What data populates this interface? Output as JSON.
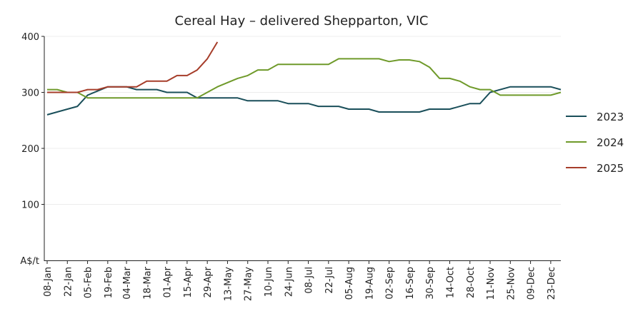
{
  "chart_data": {
    "type": "line",
    "title": "Cereal Hay – delivered Shepparton, VIC",
    "ylabel": "A$/t",
    "ylim": [
      0,
      400
    ],
    "yticks": [
      100,
      200,
      300,
      400
    ],
    "y_unit_label": "A$/t",
    "x_ticks": [
      "08-Jan",
      "22-Jan",
      "05-Feb",
      "19-Feb",
      "04-Mar",
      "18-Mar",
      "01-Apr",
      "15-Apr",
      "29-Apr",
      "13-May",
      "27-May",
      "10-Jun",
      "24-Jun",
      "08-Jul",
      "22-Jul",
      "05-Aug",
      "19-Aug",
      "02-Sep",
      "16-Sep",
      "30-Sep",
      "14-Oct",
      "28-Oct",
      "11-Nov",
      "25-Nov",
      "09-Dec",
      "23-Dec"
    ],
    "legend_position": "right",
    "grid": "horizontal",
    "series": [
      {
        "name": "2023",
        "color": "#1a4f5a",
        "points": [
          [
            "08-Jan",
            260
          ],
          [
            "22-Jan",
            270
          ],
          [
            "29-Jan",
            275
          ],
          [
            "05-Feb",
            295
          ],
          [
            "19-Feb",
            310
          ],
          [
            "04-Mar",
            310
          ],
          [
            "11-Mar",
            305
          ],
          [
            "25-Mar",
            305
          ],
          [
            "01-Apr",
            300
          ],
          [
            "15-Apr",
            300
          ],
          [
            "22-Apr",
            290
          ],
          [
            "29-Apr",
            290
          ],
          [
            "20-May",
            290
          ],
          [
            "27-May",
            285
          ],
          [
            "17-Jun",
            285
          ],
          [
            "24-Jun",
            280
          ],
          [
            "08-Jul",
            280
          ],
          [
            "15-Jul",
            275
          ],
          [
            "29-Jul",
            275
          ],
          [
            "05-Aug",
            270
          ],
          [
            "19-Aug",
            270
          ],
          [
            "26-Aug",
            265
          ],
          [
            "23-Sep",
            265
          ],
          [
            "30-Sep",
            270
          ],
          [
            "14-Oct",
            270
          ],
          [
            "28-Oct",
            280
          ],
          [
            "04-Nov",
            280
          ],
          [
            "11-Nov",
            300
          ],
          [
            "25-Nov",
            310
          ],
          [
            "16-Dec",
            310
          ],
          [
            "23-Dec",
            310
          ],
          [
            "30-Dec",
            305
          ]
        ]
      },
      {
        "name": "2024",
        "color": "#6f9a2a",
        "points": [
          [
            "08-Jan",
            305
          ],
          [
            "15-Jan",
            305
          ],
          [
            "22-Jan",
            300
          ],
          [
            "29-Jan",
            300
          ],
          [
            "05-Feb",
            290
          ],
          [
            "19-Feb",
            290
          ],
          [
            "15-Apr",
            290
          ],
          [
            "22-Apr",
            290
          ],
          [
            "06-May",
            310
          ],
          [
            "20-May",
            325
          ],
          [
            "27-May",
            330
          ],
          [
            "03-Jun",
            340
          ],
          [
            "10-Jun",
            340
          ],
          [
            "17-Jun",
            350
          ],
          [
            "08-Jul",
            350
          ],
          [
            "22-Jul",
            350
          ],
          [
            "29-Jul",
            360
          ],
          [
            "26-Aug",
            360
          ],
          [
            "02-Sep",
            355
          ],
          [
            "09-Sep",
            358
          ],
          [
            "16-Sep",
            358
          ],
          [
            "23-Sep",
            355
          ],
          [
            "30-Sep",
            345
          ],
          [
            "07-Oct",
            325
          ],
          [
            "14-Oct",
            325
          ],
          [
            "21-Oct",
            320
          ],
          [
            "28-Oct",
            310
          ],
          [
            "04-Nov",
            305
          ],
          [
            "11-Nov",
            305
          ],
          [
            "18-Nov",
            295
          ],
          [
            "16-Dec",
            295
          ],
          [
            "23-Dec",
            295
          ],
          [
            "30-Dec",
            300
          ]
        ]
      },
      {
        "name": "2025",
        "color": "#a63d2a",
        "points": [
          [
            "08-Jan",
            300
          ],
          [
            "29-Jan",
            300
          ],
          [
            "05-Feb",
            305
          ],
          [
            "12-Feb",
            305
          ],
          [
            "19-Feb",
            310
          ],
          [
            "11-Mar",
            310
          ],
          [
            "18-Mar",
            320
          ],
          [
            "01-Apr",
            320
          ],
          [
            "08-Apr",
            330
          ],
          [
            "15-Apr",
            330
          ],
          [
            "22-Apr",
            340
          ],
          [
            "29-Apr",
            360
          ],
          [
            "06-May",
            390
          ]
        ]
      }
    ]
  }
}
